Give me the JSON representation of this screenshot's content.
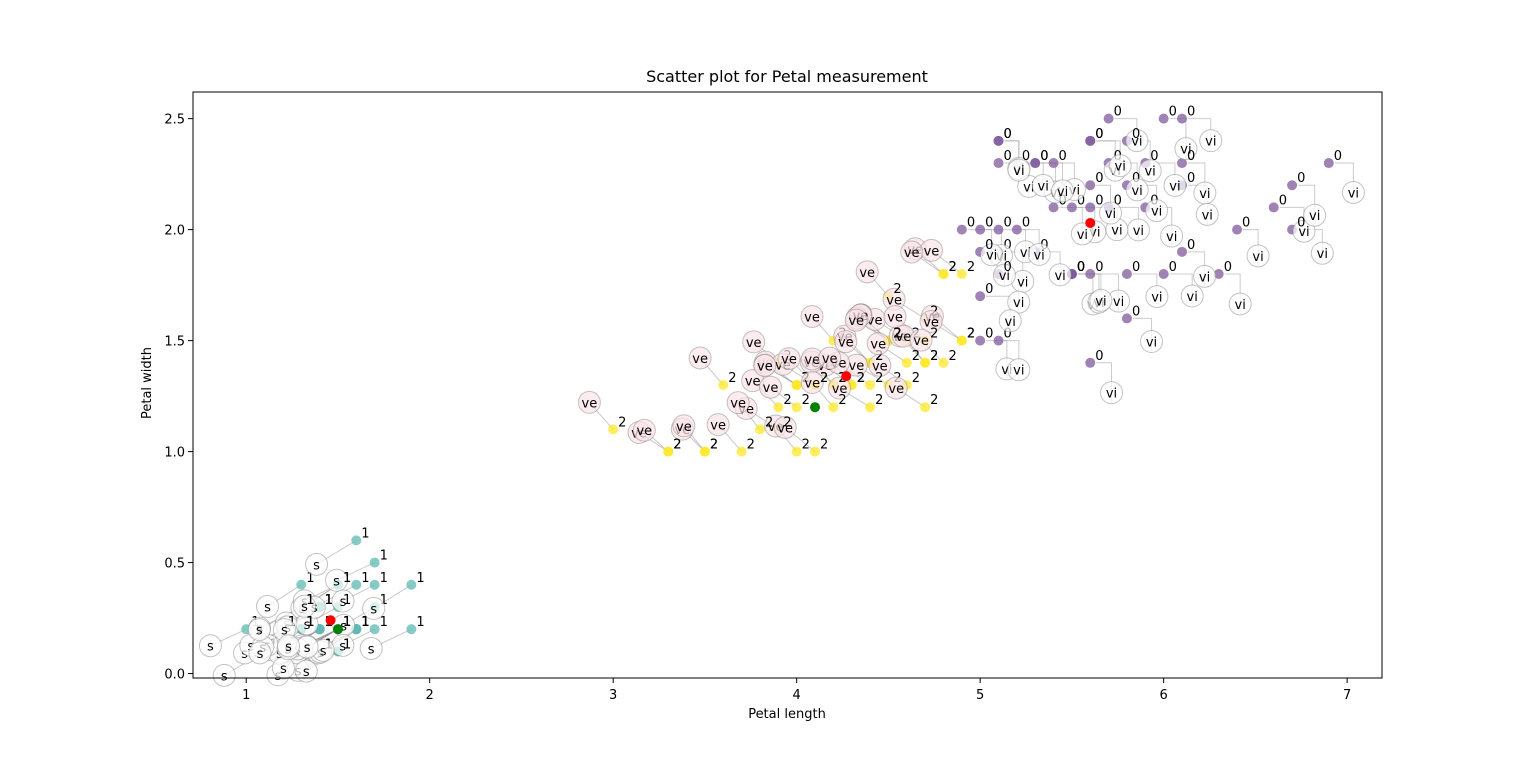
{
  "chart_data": {
    "type": "scatter",
    "title": "Scatter plot for Petal measurement",
    "xlabel": "Petal length",
    "ylabel": "Petal width",
    "xlim": [
      0.71,
      7.19
    ],
    "ylim": [
      -0.02,
      2.62
    ],
    "xticks": [
      1,
      2,
      3,
      4,
      5,
      6,
      7
    ],
    "yticks": [
      0.0,
      0.5,
      1.0,
      1.5,
      2.0,
      2.5
    ],
    "grid": false,
    "colors": {
      "setosa": "#5fb9b3",
      "versicolor": "#fde725",
      "virginica": "#7e5a9b",
      "centroid_red": "#ff0000",
      "centroid_green": "#008000"
    },
    "series": [
      {
        "cluster_label": "1",
        "annotation": "s",
        "points": [
          [
            1.4,
            0.2
          ],
          [
            1.4,
            0.2
          ],
          [
            1.3,
            0.2
          ],
          [
            1.5,
            0.2
          ],
          [
            1.4,
            0.2
          ],
          [
            1.7,
            0.4
          ],
          [
            1.4,
            0.3
          ],
          [
            1.5,
            0.2
          ],
          [
            1.4,
            0.2
          ],
          [
            1.5,
            0.1
          ],
          [
            1.5,
            0.2
          ],
          [
            1.6,
            0.2
          ],
          [
            1.4,
            0.1
          ],
          [
            1.1,
            0.1
          ],
          [
            1.2,
            0.2
          ],
          [
            1.5,
            0.4
          ],
          [
            1.3,
            0.4
          ],
          [
            1.4,
            0.3
          ],
          [
            1.7,
            0.3
          ],
          [
            1.5,
            0.3
          ],
          [
            1.7,
            0.2
          ],
          [
            1.5,
            0.4
          ],
          [
            1.0,
            0.2
          ],
          [
            1.7,
            0.5
          ],
          [
            1.9,
            0.2
          ],
          [
            1.6,
            0.2
          ],
          [
            1.6,
            0.4
          ],
          [
            1.5,
            0.2
          ],
          [
            1.4,
            0.2
          ],
          [
            1.6,
            0.2
          ],
          [
            1.6,
            0.2
          ],
          [
            1.5,
            0.4
          ],
          [
            1.5,
            0.1
          ],
          [
            1.4,
            0.2
          ],
          [
            1.5,
            0.2
          ],
          [
            1.2,
            0.2
          ],
          [
            1.3,
            0.2
          ],
          [
            1.4,
            0.1
          ],
          [
            1.3,
            0.2
          ],
          [
            1.5,
            0.2
          ],
          [
            1.3,
            0.3
          ],
          [
            1.3,
            0.3
          ],
          [
            1.3,
            0.2
          ],
          [
            1.6,
            0.6
          ],
          [
            1.9,
            0.4
          ],
          [
            1.4,
            0.3
          ],
          [
            1.6,
            0.2
          ],
          [
            1.4,
            0.2
          ],
          [
            1.5,
            0.2
          ],
          [
            1.4,
            0.2
          ]
        ]
      },
      {
        "cluster_label": "2",
        "annotation": "ve",
        "points": [
          [
            4.7,
            1.4
          ],
          [
            4.5,
            1.5
          ],
          [
            4.9,
            1.5
          ],
          [
            4.0,
            1.3
          ],
          [
            4.6,
            1.5
          ],
          [
            4.5,
            1.3
          ],
          [
            4.7,
            1.6
          ],
          [
            3.3,
            1.0
          ],
          [
            4.6,
            1.3
          ],
          [
            3.9,
            1.4
          ],
          [
            3.5,
            1.0
          ],
          [
            4.2,
            1.5
          ],
          [
            4.0,
            1.0
          ],
          [
            4.7,
            1.4
          ],
          [
            3.6,
            1.3
          ],
          [
            4.4,
            1.4
          ],
          [
            4.5,
            1.5
          ],
          [
            4.1,
            1.0
          ],
          [
            4.5,
            1.5
          ],
          [
            3.9,
            1.1
          ],
          [
            4.0,
            1.3
          ],
          [
            4.9,
            1.5
          ],
          [
            4.7,
            1.2
          ],
          [
            4.3,
            1.3
          ],
          [
            4.4,
            1.4
          ],
          [
            4.8,
            1.4
          ],
          [
            4.5,
            1.7
          ],
          [
            3.5,
            1.0
          ],
          [
            3.8,
            1.1
          ],
          [
            3.7,
            1.0
          ],
          [
            3.9,
            1.2
          ],
          [
            4.5,
            1.5
          ],
          [
            4.7,
            1.5
          ],
          [
            4.4,
            1.3
          ],
          [
            4.1,
            1.3
          ],
          [
            4.0,
            1.3
          ],
          [
            4.4,
            1.2
          ],
          [
            4.6,
            1.4
          ],
          [
            4.0,
            1.2
          ],
          [
            3.3,
            1.0
          ],
          [
            4.2,
            1.3
          ],
          [
            4.2,
            1.2
          ],
          [
            4.2,
            1.3
          ],
          [
            4.3,
            1.3
          ],
          [
            3.0,
            1.1
          ],
          [
            4.1,
            1.3
          ],
          [
            4.8,
            1.8
          ],
          [
            4.9,
            1.8
          ],
          [
            4.8,
            1.8
          ],
          [
            4.5,
            1.5
          ]
        ]
      },
      {
        "cluster_label": "0",
        "annotation": "vi",
        "points": [
          [
            6.0,
            2.5
          ],
          [
            5.1,
            1.9
          ],
          [
            5.9,
            2.1
          ],
          [
            5.6,
            1.8
          ],
          [
            5.8,
            2.2
          ],
          [
            6.6,
            2.1
          ],
          [
            5.8,
            1.8
          ],
          [
            6.1,
            2.5
          ],
          [
            5.1,
            2.0
          ],
          [
            5.3,
            1.9
          ],
          [
            5.5,
            2.1
          ],
          [
            5.0,
            2.0
          ],
          [
            5.1,
            2.4
          ],
          [
            5.3,
            2.3
          ],
          [
            5.5,
            1.8
          ],
          [
            6.7,
            2.2
          ],
          [
            6.9,
            2.3
          ],
          [
            5.0,
            1.5
          ],
          [
            5.7,
            2.3
          ],
          [
            4.9,
            2.0
          ],
          [
            6.7,
            2.0
          ],
          [
            5.7,
            2.1
          ],
          [
            6.0,
            1.8
          ],
          [
            5.6,
            2.1
          ],
          [
            5.8,
            1.6
          ],
          [
            6.1,
            1.9
          ],
          [
            6.4,
            2.0
          ],
          [
            5.6,
            2.2
          ],
          [
            5.1,
            1.5
          ],
          [
            5.6,
            1.4
          ],
          [
            6.1,
            2.3
          ],
          [
            5.6,
            2.4
          ],
          [
            5.5,
            1.8
          ],
          [
            5.4,
            2.1
          ],
          [
            5.6,
            2.4
          ],
          [
            5.1,
            2.3
          ],
          [
            5.9,
            2.3
          ],
          [
            5.7,
            2.5
          ],
          [
            5.2,
            2.3
          ],
          [
            5.0,
            1.9
          ],
          [
            5.2,
            2.0
          ],
          [
            5.4,
            2.3
          ],
          [
            5.1,
            1.8
          ],
          [
            5.1,
            2.4
          ],
          [
            6.3,
            1.8
          ],
          [
            5.8,
            2.4
          ],
          [
            6.1,
            2.2
          ],
          [
            5.3,
            2.3
          ],
          [
            5.5,
            1.8
          ],
          [
            5.0,
            1.7
          ]
        ]
      }
    ],
    "centroids": [
      {
        "x": 1.46,
        "y": 0.24,
        "color": "red"
      },
      {
        "x": 4.27,
        "y": 1.34,
        "color": "red"
      },
      {
        "x": 5.6,
        "y": 2.03,
        "color": "red"
      },
      {
        "x": 1.5,
        "y": 0.2,
        "color": "green"
      },
      {
        "x": 4.1,
        "y": 1.2,
        "color": "green"
      }
    ]
  }
}
